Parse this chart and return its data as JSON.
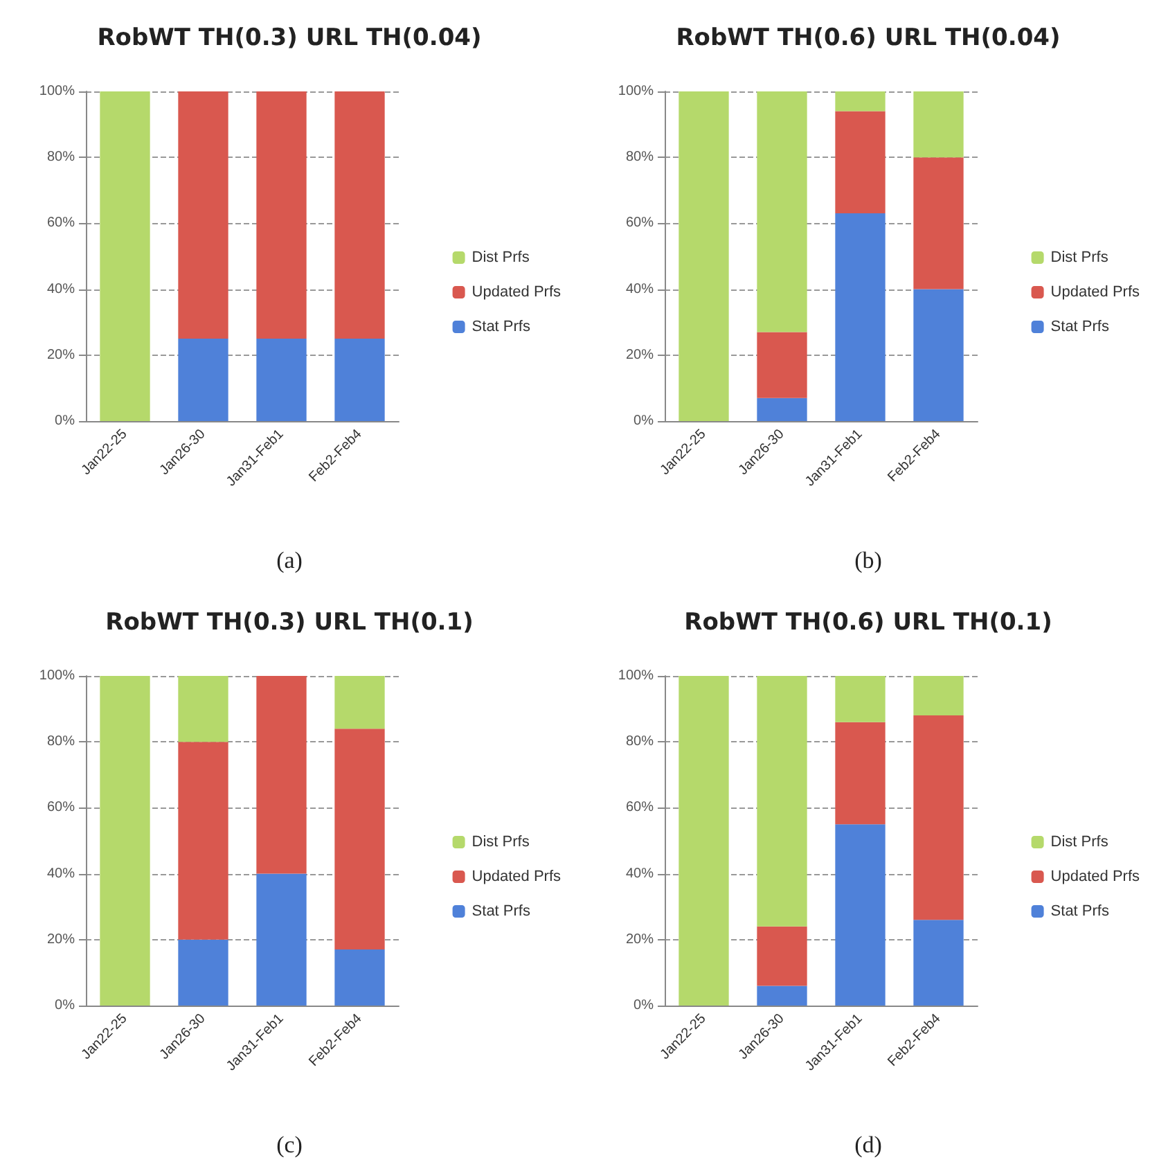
{
  "chart_data": [
    {
      "type": "bar",
      "stacked": true,
      "title": "RobWT TH(0.3) URL TH(0.04)",
      "annotations": [
        "(a)"
      ],
      "categories": [
        "Jan22-25",
        "Jan26-30",
        "Jan31-Feb1",
        "Feb2-Feb4"
      ],
      "ylim": [
        0,
        100
      ],
      "yticks": [
        {
          "value": 0,
          "label": "0%"
        },
        {
          "value": 20,
          "label": "20%"
        },
        {
          "value": 40,
          "label": "40%"
        },
        {
          "value": 60,
          "label": "60%"
        },
        {
          "value": 80,
          "label": "80%"
        },
        {
          "value": 100,
          "label": "100%"
        }
      ],
      "grid": "y",
      "legend": "right",
      "series": [
        {
          "name": "Stat Prfs",
          "color": "#4f81d9",
          "values": [
            0,
            25,
            25,
            25
          ]
        },
        {
          "name": "Updated Prfs",
          "color": "#d9584f",
          "values": [
            0,
            75,
            75,
            75
          ]
        },
        {
          "name": "Dist Prfs",
          "color": "#b5d96b",
          "values": [
            100,
            0,
            0,
            0
          ]
        }
      ]
    },
    {
      "type": "bar",
      "stacked": true,
      "title": "RobWT TH(0.6) URL TH(0.04)",
      "annotations": [
        "(b)"
      ],
      "categories": [
        "Jan22-25",
        "Jan26-30",
        "Jan31-Feb1",
        "Feb2-Feb4"
      ],
      "ylim": [
        0,
        100
      ],
      "yticks": [
        {
          "value": 0,
          "label": "0%"
        },
        {
          "value": 20,
          "label": "20%"
        },
        {
          "value": 40,
          "label": "40%"
        },
        {
          "value": 60,
          "label": "60%"
        },
        {
          "value": 80,
          "label": "80%"
        },
        {
          "value": 100,
          "label": "100%"
        }
      ],
      "grid": "y",
      "legend": "right",
      "series": [
        {
          "name": "Stat Prfs",
          "color": "#4f81d9",
          "values": [
            0,
            7,
            63,
            40
          ]
        },
        {
          "name": "Updated Prfs",
          "color": "#d9584f",
          "values": [
            0,
            20,
            31,
            40
          ]
        },
        {
          "name": "Dist Prfs",
          "color": "#b5d96b",
          "values": [
            100,
            73,
            6,
            20
          ]
        }
      ]
    },
    {
      "type": "bar",
      "stacked": true,
      "title": "RobWT TH(0.3) URL TH(0.1)",
      "annotations": [
        "(c)"
      ],
      "categories": [
        "Jan22-25",
        "Jan26-30",
        "Jan31-Feb1",
        "Feb2-Feb4"
      ],
      "ylim": [
        0,
        100
      ],
      "yticks": [
        {
          "value": 0,
          "label": "0%"
        },
        {
          "value": 20,
          "label": "20%"
        },
        {
          "value": 40,
          "label": "40%"
        },
        {
          "value": 60,
          "label": "60%"
        },
        {
          "value": 80,
          "label": "80%"
        },
        {
          "value": 100,
          "label": "100%"
        }
      ],
      "grid": "y",
      "legend": "right",
      "series": [
        {
          "name": "Stat Prfs",
          "color": "#4f81d9",
          "values": [
            0,
            20,
            40,
            17
          ]
        },
        {
          "name": "Updated Prfs",
          "color": "#d9584f",
          "values": [
            0,
            60,
            60,
            67
          ]
        },
        {
          "name": "Dist Prfs",
          "color": "#b5d96b",
          "values": [
            100,
            20,
            0,
            16
          ]
        }
      ]
    },
    {
      "type": "bar",
      "stacked": true,
      "title": "RobWT TH(0.6) URL TH(0.1)",
      "annotations": [
        "(d)"
      ],
      "categories": [
        "Jan22-25",
        "Jan26-30",
        "Jan31-Feb1",
        "Feb2-Feb4"
      ],
      "ylim": [
        0,
        100
      ],
      "yticks": [
        {
          "value": 0,
          "label": "0%"
        },
        {
          "value": 20,
          "label": "20%"
        },
        {
          "value": 40,
          "label": "40%"
        },
        {
          "value": 60,
          "label": "60%"
        },
        {
          "value": 80,
          "label": "80%"
        },
        {
          "value": 100,
          "label": "100%"
        }
      ],
      "grid": "y",
      "legend": "right",
      "series": [
        {
          "name": "Stat Prfs",
          "color": "#4f81d9",
          "values": [
            0,
            6,
            55,
            26
          ]
        },
        {
          "name": "Updated Prfs",
          "color": "#d9584f",
          "values": [
            0,
            18,
            31,
            62
          ]
        },
        {
          "name": "Dist Prfs",
          "color": "#b5d96b",
          "values": [
            100,
            76,
            14,
            12
          ]
        }
      ]
    }
  ]
}
